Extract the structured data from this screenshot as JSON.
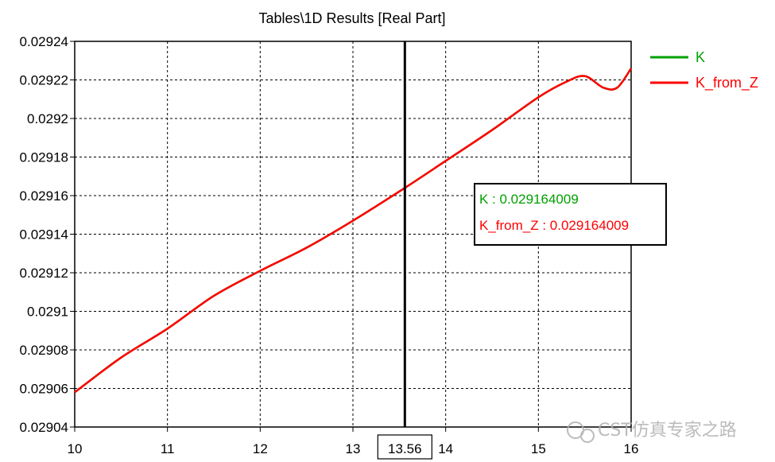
{
  "chart_data": {
    "type": "line",
    "title": "Tables\\1D Results [Real Part]",
    "xlabel": "",
    "ylabel": "",
    "xlim": [
      10,
      16
    ],
    "ylim": [
      0.02904,
      0.02924
    ],
    "x_ticks": [
      "10",
      "11",
      "12",
      "13",
      "14",
      "15",
      "16"
    ],
    "y_ticks": [
      "0.02904",
      "0.02906",
      "0.02908",
      "0.0291",
      "0.02912",
      "0.02914",
      "0.02916",
      "0.02918",
      "0.0292",
      "0.02922",
      "0.02924"
    ],
    "grid": true,
    "legend_position": "right",
    "series": [
      {
        "name": "K",
        "color": "#00a000",
        "x": [
          10,
          10.5,
          11,
          11.5,
          12,
          12.5,
          13,
          13.56,
          14,
          14.5,
          15,
          15.3,
          15.5,
          15.7,
          15.85,
          16
        ],
        "y": [
          0.029058,
          0.029076,
          0.029091,
          0.029108,
          0.029121,
          0.029133,
          0.029147,
          0.029164,
          0.029178,
          0.029194,
          0.029211,
          0.029219,
          0.029222,
          0.029216,
          0.029216,
          0.029226
        ]
      },
      {
        "name": "K_from_Z",
        "color": "#ff0000",
        "x": [
          10,
          10.5,
          11,
          11.5,
          12,
          12.5,
          13,
          13.56,
          14,
          14.5,
          15,
          15.3,
          15.5,
          15.7,
          15.85,
          16
        ],
        "y": [
          0.029058,
          0.029076,
          0.029091,
          0.029108,
          0.029121,
          0.029133,
          0.029147,
          0.029164,
          0.029178,
          0.029194,
          0.029211,
          0.029219,
          0.029222,
          0.029216,
          0.029216,
          0.029226
        ]
      }
    ],
    "marker": {
      "x_label": "13.56",
      "x": 13.56,
      "color": "#000000",
      "readouts": [
        {
          "label": "K : 0.029164009",
          "color": "#00a000"
        },
        {
          "label": "K_from_Z : 0.029164009",
          "color": "#ff0000"
        }
      ]
    }
  },
  "watermark": {
    "text": "CST仿真专家之路",
    "icon": "wechat-icon"
  }
}
